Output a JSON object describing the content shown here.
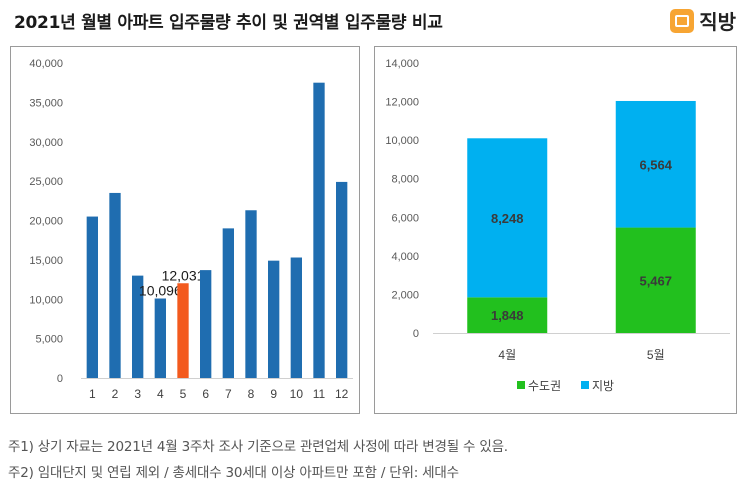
{
  "title": "2021년 월별 아파트 입주물량 추이 및 권역별 입주물량 비교",
  "brand": {
    "name": "직방",
    "icon": "house-logo-icon",
    "color": "#f7a533"
  },
  "notes": [
    "주1) 상기 자료는 2021년 4월 3주차 조사 기준으로 관련업체 사정에 따라 변경될 수 있음.",
    "주2) 임대단지 및 연립 제외 / 총세대수 30세대 이상 아파트만 포함 / 단위: 세대수"
  ],
  "chart_data": [
    {
      "type": "bar",
      "categories": [
        "1",
        "2",
        "3",
        "4",
        "5",
        "6",
        "7",
        "8",
        "9",
        "10",
        "11",
        "12"
      ],
      "values": [
        20500,
        23500,
        13000,
        10096,
        12031,
        13700,
        19000,
        21300,
        14900,
        15300,
        37500,
        24900
      ],
      "colors": {
        "default": "#1f6db0",
        "highlight": "#f35a1e"
      },
      "highlight_index": 4,
      "data_labels": {
        "3": "10,096",
        "4": "12,031"
      },
      "ylim": [
        0,
        40000
      ],
      "yticks": [
        "0",
        "5,000",
        "10,000",
        "15,000",
        "20,000",
        "25,000",
        "30,000",
        "35,000",
        "40,000"
      ],
      "xlabel": "",
      "ylabel": "",
      "grid": false
    },
    {
      "type": "bar",
      "stacked": true,
      "categories": [
        "4월",
        "5월"
      ],
      "series": [
        {
          "name": "수도권",
          "values": [
            1848,
            5467
          ],
          "labels": [
            "1,848",
            "5,467"
          ],
          "color": "#22c01e"
        },
        {
          "name": "지방",
          "values": [
            8248,
            6564
          ],
          "labels": [
            "8,248",
            "6,564"
          ],
          "color": "#00b0f0"
        }
      ],
      "ylim": [
        0,
        14000
      ],
      "yticks": [
        "0",
        "2,000",
        "4,000",
        "6,000",
        "8,000",
        "10,000",
        "12,000",
        "14,000"
      ],
      "legend": "bottom",
      "grid": false
    }
  ]
}
